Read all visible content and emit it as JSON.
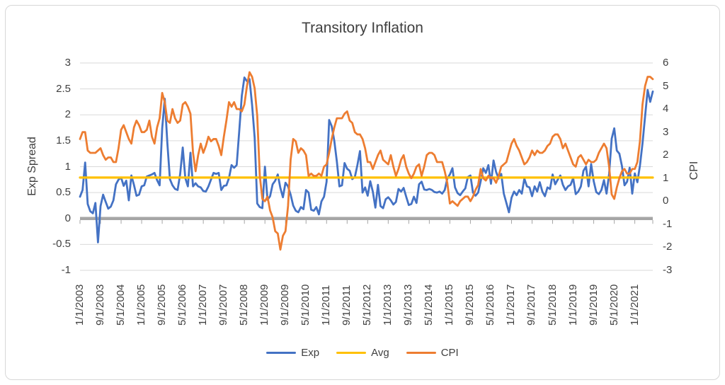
{
  "chart": {
    "title": "Transitory Inflation",
    "left_axis": {
      "title": "Exp Spread",
      "tick_labels": [
        "3",
        "2.5",
        "2",
        "1.5",
        "1",
        "0.5",
        "0",
        "-0.5",
        "-1"
      ]
    },
    "right_axis": {
      "title": "CPI",
      "tick_labels": [
        "6",
        "5",
        "4",
        "3",
        "2",
        "1",
        "0",
        "-1",
        "-2",
        "-3"
      ]
    },
    "x_axis": {
      "tick_labels": [
        "1/1/2003",
        "9/1/2003",
        "5/1/2004",
        "1/1/2005",
        "9/1/2005",
        "5/1/2006",
        "1/1/2007",
        "9/1/2007",
        "5/1/2008",
        "1/1/2009",
        "9/1/2009",
        "5/1/2010",
        "1/1/2011",
        "9/1/2011",
        "5/1/2012",
        "1/1/2013",
        "9/1/2013",
        "5/1/2014",
        "1/1/2015",
        "9/1/2015",
        "5/1/2016",
        "1/1/2017",
        "9/1/2017",
        "5/1/2018",
        "1/1/2019",
        "9/1/2019",
        "5/1/2020",
        "1/1/2021"
      ],
      "tick_step_points": 8
    }
  },
  "legend": [
    {
      "label": "Exp",
      "color": "#4472C4"
    },
    {
      "label": "Avg",
      "color": "#FFC000"
    },
    {
      "label": "CPI",
      "color": "#ED7D31"
    }
  ],
  "colors": {
    "exp_line": "#4472C4",
    "avg_line": "#FFC000",
    "cpi_line": "#ED7D31",
    "gridline": "#D9D9D9",
    "axis_line": "#A6A6A6",
    "text": "#404040"
  },
  "chart_data": {
    "type": "line",
    "title": "Transitory Inflation",
    "x_start": "1/1/2003",
    "x_step_months": 1,
    "left_ylabel": "Exp Spread",
    "right_ylabel": "CPI",
    "left_ylim": [
      -1,
      3
    ],
    "right_ylim": [
      -3,
      6
    ],
    "grid": "horizontal",
    "legend_position": "bottom",
    "series": [
      {
        "name": "Exp",
        "axis": "left",
        "color": "#4472C4",
        "values": [
          0.42,
          0.55,
          1.08,
          0.28,
          0.14,
          0.1,
          0.3,
          -0.46,
          0.24,
          0.46,
          0.32,
          0.19,
          0.23,
          0.35,
          0.66,
          0.75,
          0.79,
          0.63,
          0.73,
          0.35,
          0.83,
          0.65,
          0.44,
          0.46,
          0.62,
          0.64,
          0.81,
          0.83,
          0.85,
          0.88,
          0.74,
          0.64,
          1.74,
          2.31,
          1.46,
          0.76,
          0.64,
          0.57,
          0.55,
          0.86,
          1.37,
          0.78,
          0.62,
          1.27,
          0.62,
          0.68,
          0.62,
          0.6,
          0.53,
          0.52,
          0.62,
          0.75,
          0.88,
          0.86,
          0.88,
          0.55,
          0.63,
          0.64,
          0.78,
          1.03,
          0.98,
          1.03,
          1.69,
          2.37,
          2.72,
          2.65,
          2.69,
          2.19,
          1.56,
          0.29,
          0.22,
          0.2,
          1.0,
          0.36,
          0.43,
          0.66,
          0.73,
          0.85,
          0.59,
          0.41,
          0.69,
          0.62,
          0.46,
          0.25,
          0.15,
          0.12,
          0.22,
          0.18,
          0.55,
          0.5,
          0.17,
          0.15,
          0.22,
          0.08,
          0.33,
          0.42,
          0.71,
          1.9,
          1.78,
          1.5,
          1.1,
          0.62,
          0.64,
          1.07,
          0.96,
          0.92,
          0.76,
          0.8,
          1.03,
          1.3,
          0.5,
          0.6,
          0.44,
          0.72,
          0.52,
          0.21,
          0.65,
          0.24,
          0.2,
          0.37,
          0.41,
          0.35,
          0.27,
          0.32,
          0.57,
          0.52,
          0.59,
          0.42,
          0.26,
          0.28,
          0.42,
          0.3,
          0.66,
          0.71,
          0.56,
          0.55,
          0.57,
          0.55,
          0.51,
          0.5,
          0.52,
          0.48,
          0.55,
          0.77,
          0.85,
          0.97,
          0.6,
          0.49,
          0.45,
          0.52,
          0.58,
          0.8,
          0.83,
          0.5,
          0.44,
          0.5,
          0.72,
          0.97,
          0.88,
          1.03,
          0.67,
          1.12,
          0.9,
          0.77,
          0.86,
          0.48,
          0.3,
          0.12,
          0.4,
          0.52,
          0.45,
          0.55,
          0.48,
          0.77,
          0.62,
          0.6,
          0.43,
          0.62,
          0.52,
          0.7,
          0.52,
          0.43,
          0.6,
          0.57,
          0.85,
          0.66,
          0.75,
          0.83,
          0.65,
          0.55,
          0.62,
          0.65,
          0.78,
          0.47,
          0.52,
          0.62,
          0.92,
          1.0,
          0.62,
          1.05,
          0.72,
          0.51,
          0.47,
          0.55,
          0.74,
          0.48,
          0.86,
          1.54,
          1.74,
          1.31,
          1.25,
          1.01,
          0.64,
          0.71,
          0.98,
          0.48,
          0.87,
          0.7,
          1.02,
          1.45,
          1.97,
          2.48,
          2.25,
          2.45
        ]
      },
      {
        "name": "Avg",
        "axis": "left",
        "color": "#FFC000",
        "constant": 0.79
      },
      {
        "name": "CPI",
        "axis": "right",
        "color": "#ED7D31",
        "values": [
          2.7,
          3.0,
          3.0,
          2.2,
          2.1,
          2.1,
          2.1,
          2.2,
          2.3,
          2.0,
          1.8,
          1.9,
          1.9,
          1.7,
          1.7,
          2.3,
          3.1,
          3.3,
          3.0,
          2.7,
          2.5,
          3.2,
          3.5,
          3.3,
          3.0,
          3.0,
          3.1,
          3.5,
          2.8,
          2.5,
          3.2,
          3.6,
          4.7,
          4.3,
          3.5,
          3.4,
          4.0,
          3.6,
          3.4,
          3.5,
          4.2,
          4.3,
          4.1,
          3.8,
          2.1,
          1.3,
          2.0,
          2.5,
          2.1,
          2.4,
          2.8,
          2.6,
          2.7,
          2.7,
          2.4,
          2.0,
          2.8,
          3.5,
          4.3,
          4.1,
          4.3,
          4.0,
          4.0,
          3.9,
          4.2,
          5.0,
          5.6,
          5.4,
          4.9,
          3.7,
          1.1,
          0.1,
          0.0,
          0.2,
          -0.4,
          -0.7,
          -1.3,
          -1.4,
          -2.1,
          -1.5,
          -1.3,
          -0.2,
          1.8,
          2.7,
          2.6,
          2.1,
          2.3,
          2.2,
          2.0,
          1.1,
          1.2,
          1.1,
          1.1,
          1.2,
          1.1,
          1.5,
          1.6,
          2.1,
          2.7,
          3.2,
          3.6,
          3.6,
          3.6,
          3.8,
          3.9,
          3.5,
          3.4,
          3.0,
          2.9,
          2.9,
          2.7,
          2.3,
          1.7,
          1.7,
          1.4,
          1.7,
          2.0,
          2.2,
          1.8,
          1.7,
          1.6,
          2.0,
          1.5,
          1.1,
          1.4,
          1.8,
          2.0,
          1.5,
          1.2,
          1.0,
          1.2,
          1.5,
          1.6,
          1.1,
          1.5,
          2.0,
          2.1,
          2.1,
          2.0,
          1.7,
          1.7,
          1.7,
          1.3,
          0.8,
          -0.1,
          0.0,
          -0.1,
          -0.2,
          0.0,
          0.1,
          0.2,
          0.2,
          0.0,
          0.2,
          0.5,
          0.7,
          1.4,
          1.0,
          0.9,
          1.1,
          1.0,
          1.0,
          0.8,
          1.1,
          1.5,
          1.6,
          1.7,
          2.1,
          2.5,
          2.7,
          2.4,
          2.2,
          1.9,
          1.6,
          1.7,
          1.9,
          2.2,
          2.0,
          2.2,
          2.1,
          2.1,
          2.2,
          2.4,
          2.5,
          2.8,
          2.9,
          2.9,
          2.7,
          2.3,
          2.5,
          2.2,
          1.9,
          1.6,
          1.5,
          1.9,
          2.0,
          1.8,
          1.6,
          1.8,
          1.7,
          1.7,
          1.8,
          2.1,
          2.3,
          2.5,
          2.3,
          1.5,
          0.3,
          0.1,
          0.6,
          1.0,
          1.3,
          1.4,
          1.2,
          1.2,
          1.4,
          1.4,
          1.7,
          2.6,
          4.2,
          5.0,
          5.4,
          5.4,
          5.3
        ]
      }
    ]
  }
}
